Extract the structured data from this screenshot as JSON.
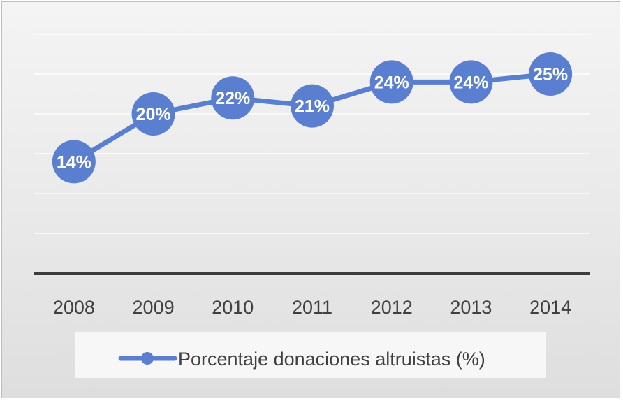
{
  "chart_data": {
    "type": "line",
    "categories": [
      "2008",
      "2009",
      "2010",
      "2011",
      "2012",
      "2013",
      "2014"
    ],
    "series": [
      {
        "name": "Porcentaje donaciones altruistas (%)",
        "values": [
          14,
          20,
          22,
          21,
          24,
          24,
          25
        ],
        "data_labels": [
          "14%",
          "20%",
          "22%",
          "21%",
          "24%",
          "24%",
          "25%"
        ]
      }
    ],
    "ylim": [
      0,
      30
    ],
    "grid": true,
    "legend": "bottom",
    "colors": {
      "series": "#5b7fd0",
      "axis": "#3d3d3d",
      "grid": "#ffffff",
      "text": "#404040"
    }
  }
}
